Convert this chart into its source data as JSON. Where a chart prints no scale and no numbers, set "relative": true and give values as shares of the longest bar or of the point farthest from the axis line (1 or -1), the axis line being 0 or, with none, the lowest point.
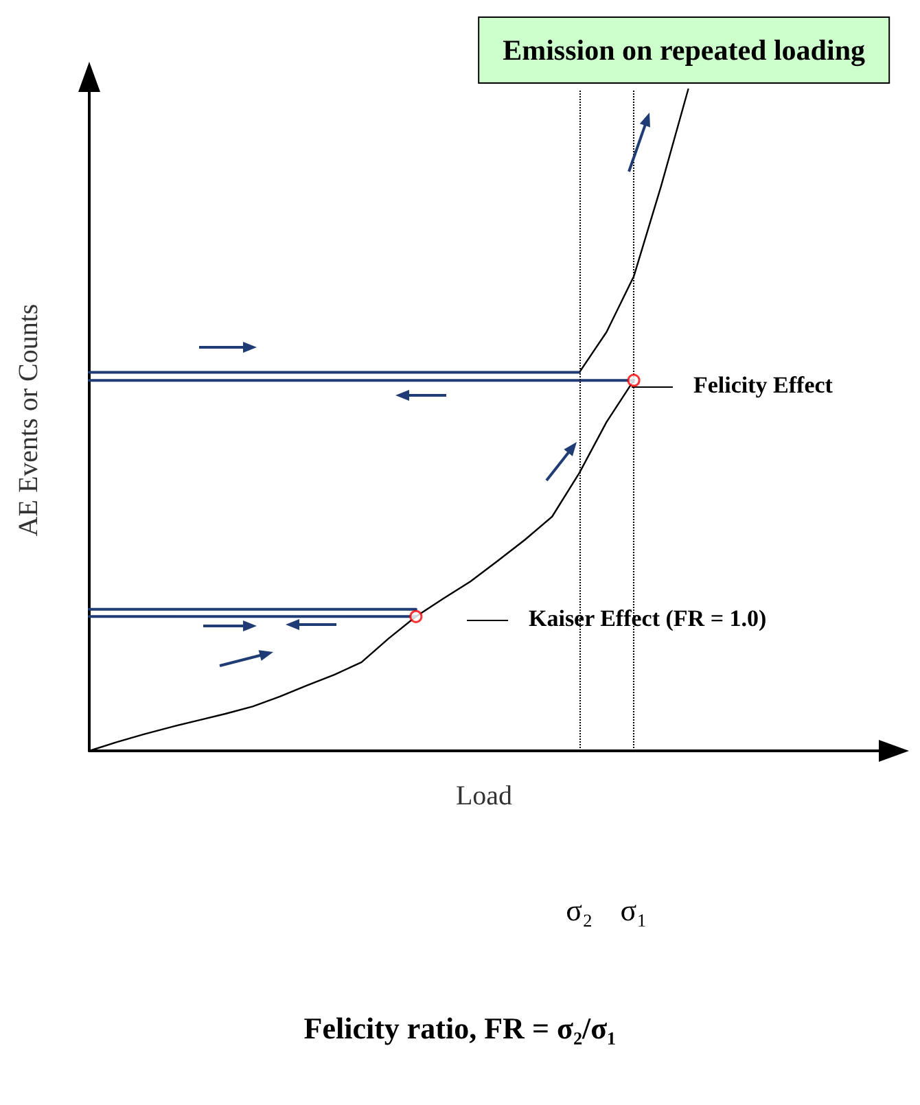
{
  "chart_data": {
    "type": "line",
    "title": "Emission on repeated loading",
    "xlabel": "Load",
    "ylabel": "AE Events or Counts",
    "relative": true,
    "grid": false,
    "tick_labels": "x",
    "marker": "none",
    "categories": [
      null,
      null,
      null,
      null,
      null,
      null,
      null,
      null,
      null,
      null,
      null,
      null,
      null,
      null,
      null,
      null,
      null,
      null,
      "σ₂",
      null,
      "σ₁",
      null,
      null,
      null,
      null,
      null,
      null,
      null,
      null,
      null
    ],
    "series": [
      {
        "color": "#000000",
        "values": [
          0,
          0.013,
          0.025,
          0.036,
          0.046,
          0.056,
          0.067,
          0.082,
          0.099,
          0.115,
          0.134,
          0.17,
          0.203,
          0.23,
          0.256,
          0.287,
          0.319,
          0.354,
          0.42,
          0.497,
          0.56,
          null,
          null,
          null,
          null,
          null,
          null,
          null,
          null,
          null
        ]
      },
      {
        "color": "#000000",
        "values": [
          null,
          null,
          null,
          null,
          null,
          null,
          null,
          null,
          null,
          null,
          null,
          null,
          null,
          null,
          null,
          null,
          null,
          null,
          0.572,
          0.633,
          0.717,
          0.853,
          1.0,
          null,
          null,
          null,
          null,
          null,
          null,
          null
        ]
      },
      {
        "color": "#1f3c74",
        "values": [
          0.572,
          0.572,
          0.572,
          0.572,
          0.572,
          0.572,
          0.572,
          0.572,
          0.572,
          0.572,
          0.572,
          0.572,
          0.572,
          0.572,
          0.572,
          0.572,
          0.572,
          0.572,
          0.572,
          null,
          null,
          null,
          null,
          null,
          null,
          null,
          null,
          null,
          null,
          null
        ]
      },
      {
        "color": "#1f3c74",
        "values": [
          0.56,
          0.56,
          0.56,
          0.56,
          0.56,
          0.56,
          0.56,
          0.56,
          0.56,
          0.56,
          0.56,
          0.56,
          0.56,
          0.56,
          0.56,
          0.56,
          0.56,
          0.56,
          0.56,
          0.56,
          0.56,
          null,
          null,
          null,
          null,
          null,
          null,
          null,
          null,
          null
        ]
      },
      {
        "color": "#1f3c74",
        "values": [
          0.214,
          0.214,
          0.214,
          0.214,
          0.214,
          0.214,
          0.214,
          0.214,
          0.214,
          0.214,
          0.214,
          0.214,
          0.214,
          null,
          null,
          null,
          null,
          null,
          null,
          null,
          null,
          null,
          null,
          null,
          null,
          null,
          null,
          null,
          null,
          null
        ]
      },
      {
        "color": "#1f3c74",
        "values": [
          0.203,
          0.203,
          0.203,
          0.203,
          0.203,
          0.203,
          0.203,
          0.203,
          0.203,
          0.203,
          0.203,
          0.203,
          0.203,
          null,
          null,
          null,
          null,
          null,
          null,
          null,
          null,
          null,
          null,
          null,
          null,
          null,
          null,
          null,
          null,
          null
        ]
      },
      {
        "type": "scatter",
        "marker": "circle",
        "color": "#ff0000",
        "values": [
          null,
          null,
          null,
          null,
          null,
          null,
          null,
          null,
          null,
          null,
          null,
          null,
          0.203,
          null,
          null,
          null,
          null,
          null,
          null,
          null,
          0.56,
          null,
          null,
          null,
          null,
          null,
          null,
          null,
          null,
          null
        ]
      }
    ],
    "ref_lines": [
      {
        "axis": "x",
        "value": "σ₂",
        "line_style": "dotted",
        "color": "#000000"
      },
      {
        "axis": "x",
        "value": "σ₁",
        "line_style": "dotted",
        "color": "#000000"
      }
    ],
    "annotations": [
      "Felicity Effect",
      "Kaiser Effect (FR = 1.0)",
      "Felicity ratio, FR = σ₂/σ₁"
    ]
  }
}
